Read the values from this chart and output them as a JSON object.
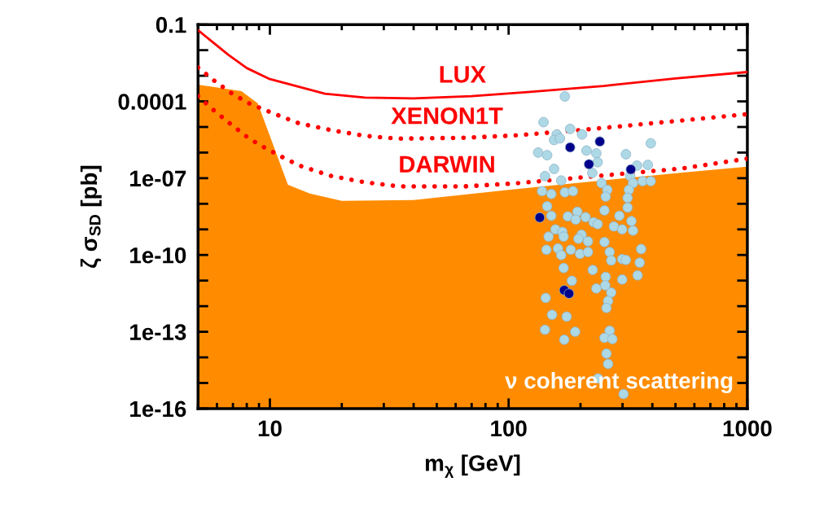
{
  "chart_data": {
    "type": "line",
    "xlabel": "m$_{χ}$ [GeV]",
    "ylabel": "ζ σ$_{SD}$ [pb]",
    "log": "xy",
    "grid": false,
    "legend": false,
    "xlim": [
      5,
      1000
    ],
    "xticks": [
      10,
      100,
      1000
    ],
    "ylim": [
      1e-16,
      0.1
    ],
    "yticks": [
      {
        "value": 0.1,
        "label": "0.1"
      },
      {
        "value": 0.01,
        "label": null
      },
      {
        "value": 0.001,
        "label": null
      },
      {
        "value": 0.0001,
        "label": "0.0001"
      },
      {
        "value": 1e-05,
        "label": null
      },
      {
        "value": 1e-06,
        "label": null
      },
      {
        "value": 1e-07,
        "label": "1e-07"
      },
      {
        "value": 1e-08,
        "label": null
      },
      {
        "value": 1e-09,
        "label": null
      },
      {
        "value": 1e-10,
        "label": "1e-10"
      },
      {
        "value": 1e-11,
        "label": null
      },
      {
        "value": 1e-12,
        "label": null
      },
      {
        "value": 1e-13,
        "label": "1e-13"
      },
      {
        "value": 1e-14,
        "label": null
      },
      {
        "value": 1e-15,
        "label": null
      },
      {
        "value": 1e-16,
        "label": "1e-16"
      }
    ],
    "annotations": [
      "ν coherent scattering"
    ],
    "series": [
      {
        "type": "area",
        "color": "#ff8c00",
        "x": [
          5,
          7.6,
          8.9,
          11.9,
          14.7,
          20,
          40,
          100,
          546,
          1000
        ],
        "values": [
          0.00045,
          0.00025,
          8.3e-05,
          5.5e-08,
          2.5e-08,
          1.3e-08,
          1.4e-08,
          3.5e-08,
          1.7e-07,
          2.8e-07
        ]
      },
      {
        "name": "LUX",
        "color": "#ff0000",
        "line_style": "solid",
        "x": [
          5,
          6.7,
          8,
          10,
          17,
          25,
          40,
          70,
          120,
          250,
          500,
          1000
        ],
        "values": [
          0.06,
          0.0066,
          0.002,
          0.00074,
          0.0002,
          0.00014,
          0.00013,
          0.00016,
          0.00023,
          0.0004,
          0.00079,
          0.0014
        ]
      },
      {
        "name": "XENON1T",
        "color": "#ff0000",
        "line_style": "dotted",
        "x": [
          5,
          5.9,
          7,
          8.2,
          9.7,
          13.2,
          18.2,
          25,
          34.5,
          66,
          107,
          200,
          533,
          1000
        ],
        "values": [
          0.0021,
          0.0006,
          0.00019,
          8.3e-05,
          4.3e-05,
          1.4e-05,
          7.4e-06,
          4.5e-06,
          3.5e-06,
          3.8e-06,
          4.7e-06,
          7.6e-06,
          1.8e-05,
          3.2e-05
        ]
      },
      {
        "name": "DARWIN",
        "color": "#ff0000",
        "line_style": "dotted",
        "x": [
          5,
          5.9,
          7,
          8.2,
          9.7,
          11.3,
          13.2,
          18.2,
          25,
          34.5,
          66,
          107,
          533,
          1000
        ],
        "values": [
          0.00016,
          4e-05,
          1.1e-05,
          3.5e-06,
          1.4e-06,
          6.6e-07,
          3.2e-07,
          1.2e-07,
          6.9e-08,
          4.8e-08,
          4.8e-08,
          6.3e-08,
          2.4e-07,
          5.8e-07
        ]
      },
      {
        "type": "scatter",
        "color": "#add8e6",
        "marker": "circle",
        "x": [
          172,
          140,
          181,
          159,
          155,
          164,
          203,
          212,
          233,
          133,
          145,
          236,
          310,
          394,
          345,
          383,
          155,
          142,
          166,
          224,
          245,
          259,
          255,
          323,
          332,
          364,
          394,
          319,
          315,
          315,
          138,
          151,
          172,
          186,
          145,
          252,
          151,
          177,
          194,
          191,
          210,
          227,
          236,
          291,
          276,
          299,
          327,
          332,
          157,
          168,
          147,
          170,
          202,
          196,
          215,
          252,
          144,
          161,
          182,
          166,
          199,
          215,
          265,
          269,
          299,
          310,
          359,
          354,
          347,
          170,
          225,
          255,
          254,
          269,
          261,
          257,
          299,
          233,
          184,
          143,
          152,
          175,
          142,
          190,
          171,
          265,
          252,
          272,
          257,
          261,
          237,
          303
        ],
        "values": [
          0.000156,
          1.54e-05,
          8.4e-06,
          5.1e-06,
          3.1e-06,
          3.6e-06,
          5.1e-06,
          1.2e-06,
          9.3e-07,
          1e-06,
          7.9e-07,
          4.2e-07,
          8.6e-07,
          2.3e-06,
          3.1e-07,
          3.3e-07,
          2.3e-07,
          1.2e-07,
          8.1e-08,
          1.6e-07,
          6.4e-08,
          3.5e-08,
          1.9e-08,
          1.2e-07,
          6.4e-08,
          7.6e-08,
          7.6e-08,
          3.5e-08,
          1.7e-08,
          7.1e-09,
          3.1e-08,
          2.4e-08,
          2.8e-08,
          3.1e-08,
          8e-09,
          5.5e-09,
          3.4e-09,
          3.2e-09,
          4.9e-09,
          2.4e-09,
          3e-09,
          1.9e-09,
          1.6e-09,
          3.4e-09,
          1.3e-09,
          1e-09,
          2.1e-09,
          8.9e-10,
          1e-09,
          7.9e-10,
          5.2e-10,
          5.2e-10,
          6.2e-10,
          4.3e-10,
          3.4e-10,
          3.2e-10,
          1.6e-10,
          1.8e-10,
          1.6e-10,
          9.9e-11,
          1.1e-10,
          1.3e-10,
          1.3e-10,
          6.1e-11,
          6.9e-11,
          6.4e-11,
          1.7e-10,
          5e-11,
          1.6e-11,
          3.1e-11,
          2.6e-11,
          1.4e-11,
          6.5e-12,
          3.4e-12,
          1.6e-12,
          8.5e-13,
          1.1e-11,
          4.9e-12,
          9.8e-12,
          2.1e-12,
          4.6e-13,
          3.9e-13,
          1.2e-13,
          1e-13,
          4.9e-14,
          1.1e-13,
          5.8e-14,
          5.2e-14,
          1.4e-14,
          5.5e-15,
          1.5e-15,
          3.7e-16
        ]
      },
      {
        "type": "scatter",
        "color": "#00008b",
        "marker": "circle",
        "x": [
          181,
          241,
          217,
          325,
          135,
          171,
          179
        ],
        "values": [
          1.6e-06,
          2.7e-06,
          3.5e-07,
          2.2e-07,
          2.9e-09,
          4.2e-12,
          3.1e-12
        ]
      }
    ]
  }
}
